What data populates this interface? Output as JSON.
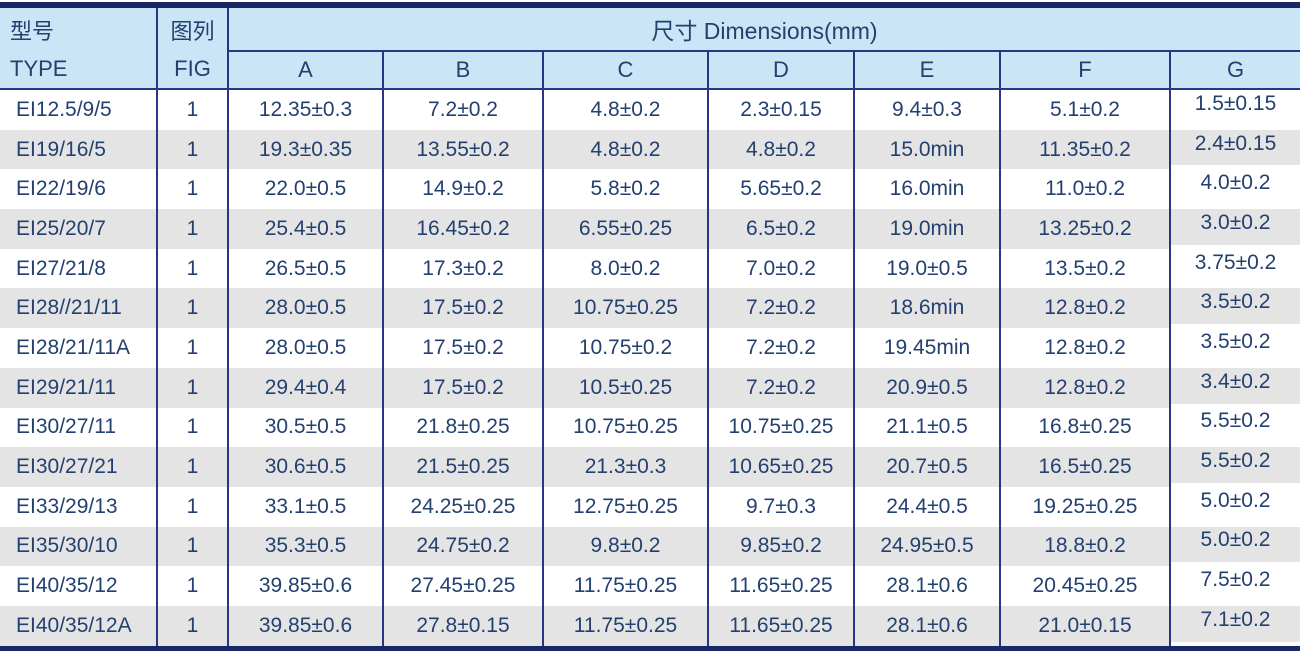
{
  "header": {
    "type_zh": "型号",
    "type_en": "TYPE",
    "fig_zh": "图列",
    "fig_en": "FIG",
    "dimensions_label": "尺寸 Dimensions(mm)",
    "dim_columns": [
      "A",
      "B",
      "C",
      "D",
      "E",
      "F",
      "G"
    ]
  },
  "rows": [
    {
      "type": "EI12.5/9/5",
      "fig": "1",
      "values": [
        "12.35±0.3",
        "7.2±0.2",
        "4.8±0.2",
        "2.3±0.15",
        "9.4±0.3",
        "5.1±0.2",
        "1.5±0.15"
      ]
    },
    {
      "type": "EI19/16/5",
      "fig": "1",
      "values": [
        "19.3±0.35",
        "13.55±0.2",
        "4.8±0.2",
        "4.8±0.2",
        "15.0min",
        "11.35±0.2",
        "2.4±0.15"
      ]
    },
    {
      "type": "EI22/19/6",
      "fig": "1",
      "values": [
        "22.0±0.5",
        "14.9±0.2",
        "5.8±0.2",
        "5.65±0.2",
        "16.0min",
        "11.0±0.2",
        "4.0±0.2"
      ]
    },
    {
      "type": "EI25/20/7",
      "fig": "1",
      "values": [
        "25.4±0.5",
        "16.45±0.2",
        "6.55±0.25",
        "6.5±0.2",
        "19.0min",
        "13.25±0.2",
        "3.0±0.2"
      ]
    },
    {
      "type": "EI27/21/8",
      "fig": "1",
      "values": [
        "26.5±0.5",
        "17.3±0.2",
        "8.0±0.2",
        "7.0±0.2",
        "19.0±0.5",
        "13.5±0.2",
        "3.75±0.2"
      ]
    },
    {
      "type": "EI28//21/11",
      "fig": "1",
      "values": [
        "28.0±0.5",
        "17.5±0.2",
        "10.75±0.25",
        "7.2±0.2",
        "18.6min",
        "12.8±0.2",
        "3.5±0.2"
      ]
    },
    {
      "type": "EI28/21/11A",
      "fig": "1",
      "values": [
        "28.0±0.5",
        "17.5±0.2",
        "10.75±0.2",
        "7.2±0.2",
        "19.45min",
        "12.8±0.2",
        "3.5±0.2"
      ]
    },
    {
      "type": "EI29/21/11",
      "fig": "1",
      "values": [
        "29.4±0.4",
        "17.5±0.2",
        "10.5±0.25",
        "7.2±0.2",
        "20.9±0.5",
        "12.8±0.2",
        "3.4±0.2"
      ]
    },
    {
      "type": "EI30/27/11",
      "fig": "1",
      "values": [
        "30.5±0.5",
        "21.8±0.25",
        "10.75±0.25",
        "10.75±0.25",
        "21.1±0.5",
        "16.8±0.25",
        "5.5±0.2"
      ]
    },
    {
      "type": "EI30/27/21",
      "fig": "1",
      "values": [
        "30.6±0.5",
        "21.5±0.25",
        "21.3±0.3",
        "10.65±0.25",
        "20.7±0.5",
        "16.5±0.25",
        "5.5±0.2"
      ]
    },
    {
      "type": "EI33/29/13",
      "fig": "1",
      "values": [
        "33.1±0.5",
        "24.25±0.25",
        "12.75±0.25",
        "9.7±0.3",
        "24.4±0.5",
        "19.25±0.25",
        "5.0±0.2"
      ]
    },
    {
      "type": "EI35/30/10",
      "fig": "1",
      "values": [
        "35.3±0.5",
        "24.75±0.2",
        "9.8±0.2",
        "9.85±0.2",
        "24.95±0.5",
        "18.8±0.2",
        "5.0±0.2"
      ]
    },
    {
      "type": "EI40/35/12",
      "fig": "1",
      "values": [
        "39.85±0.6",
        "27.45±0.25",
        "11.75±0.25",
        "11.65±0.25",
        "28.1±0.6",
        "20.45±0.25",
        "7.5±0.2"
      ]
    },
    {
      "type": "EI40/35/12A",
      "fig": "1",
      "values": [
        "39.85±0.6",
        "27.8±0.15",
        "11.75±0.25",
        "11.65±0.25",
        "28.1±0.6",
        "21.0±0.15",
        "7.1±0.2"
      ]
    }
  ],
  "colors": {
    "header_bg": "#c9e5f6",
    "border": "#2b3588",
    "bar": "#1b2664",
    "text": "#23406f",
    "stripe": "#e4e4e4"
  }
}
